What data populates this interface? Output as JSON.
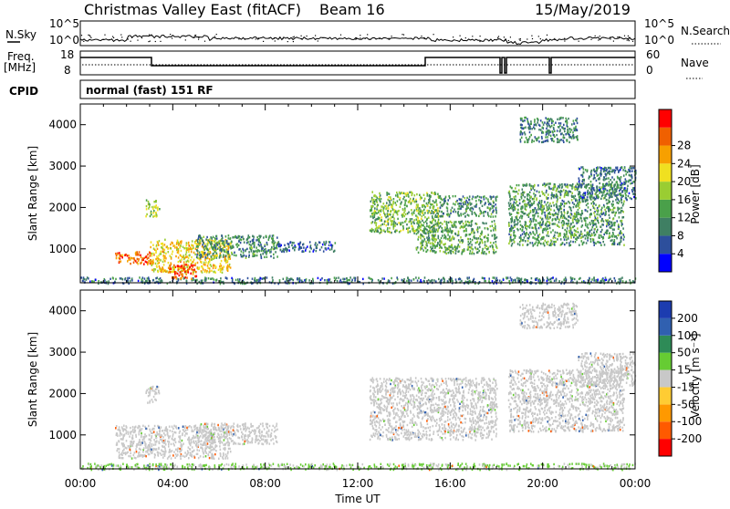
{
  "header": {
    "title": "Christmas Valley East (fitACF)",
    "beam": "Beam 16",
    "date": "15/May/2019"
  },
  "noise_panel": {
    "left_label": "N.Sky",
    "right_label": "N.Search",
    "left_ticks": [
      "10^5",
      "10^0"
    ],
    "right_ticks": [
      "10^5",
      "10^0"
    ]
  },
  "freq_panel": {
    "left_label_1": "Freq.",
    "left_label_2": "[MHz]",
    "right_label": "Nave",
    "left_ticks": [
      "18",
      "8"
    ],
    "right_ticks": [
      "60",
      "0"
    ]
  },
  "cpid": {
    "label": "CPID",
    "value": "normal (fast) 151 RF"
  },
  "colors": {
    "power_scale": [
      "#0000ff",
      "#2d4f9c",
      "#3f7f63",
      "#4aa04a",
      "#9acd32",
      "#f0e020",
      "#f7a000",
      "#f06000",
      "#ff0000"
    ],
    "velocity_scale": [
      "#ff0000",
      "#ff5a00",
      "#ff9900",
      "#ffcc33",
      "#c8c8c8",
      "#66cc33",
      "#2e8b57",
      "#3060b0",
      "#1c3cb0"
    ]
  },
  "chart_data": [
    {
      "type": "heatmap",
      "name": "power",
      "ylabel": "Slant Range [km]",
      "y_ticks": [
        "1000",
        "2000",
        "3000",
        "4000"
      ],
      "ylim": [
        180,
        4500
      ],
      "xlim": [
        0,
        24
      ],
      "colorbar": {
        "label": "Power [dB]",
        "ticks": [
          "4",
          "8",
          "12",
          "16",
          "20",
          "24",
          "28"
        ],
        "range": [
          0,
          32
        ]
      },
      "regions": [
        {
          "t": [
            0.0,
            24.0
          ],
          "r": [
            180,
            330
          ],
          "level": 8
        },
        {
          "t": [
            1.5,
            3.2
          ],
          "r": [
            650,
            950
          ],
          "level": 26
        },
        {
          "t": [
            2.8,
            3.4
          ],
          "r": [
            1800,
            2200
          ],
          "level": 16
        },
        {
          "t": [
            3.0,
            6.5
          ],
          "r": [
            450,
            1250
          ],
          "level": 20
        },
        {
          "t": [
            3.8,
            5.0
          ],
          "r": [
            300,
            650
          ],
          "level": 27
        },
        {
          "t": [
            5.0,
            8.5
          ],
          "r": [
            800,
            1350
          ],
          "level": 10
        },
        {
          "t": [
            8.5,
            11.0
          ],
          "r": [
            950,
            1200
          ],
          "level": 6
        },
        {
          "t": [
            12.5,
            15.5
          ],
          "r": [
            1400,
            2400
          ],
          "level": 14
        },
        {
          "t": [
            14.5,
            18.0
          ],
          "r": [
            900,
            1700
          ],
          "level": 12
        },
        {
          "t": [
            15.5,
            18.0
          ],
          "r": [
            1800,
            2300
          ],
          "level": 10
        },
        {
          "t": [
            18.5,
            23.5
          ],
          "r": [
            1100,
            2600
          ],
          "level": 11
        },
        {
          "t": [
            19.0,
            21.5
          ],
          "r": [
            3600,
            4200
          ],
          "level": 9
        },
        {
          "t": [
            21.5,
            24.0
          ],
          "r": [
            2200,
            3000
          ],
          "level": 8
        }
      ]
    },
    {
      "type": "heatmap",
      "name": "velocity",
      "ylabel": "Slant Range [km]",
      "xlabel": "Time UT",
      "x_ticks": [
        "00:00",
        "04:00",
        "08:00",
        "12:00",
        "16:00",
        "20:00",
        "00:00"
      ],
      "y_ticks": [
        "1000",
        "2000",
        "3000",
        "4000"
      ],
      "ylim": [
        180,
        4500
      ],
      "xlim": [
        0,
        24
      ],
      "colorbar": {
        "label": "Velocity [m s⁻¹]",
        "ticks": [
          "200",
          "100",
          "50",
          "15",
          "-15",
          "-50",
          "-100",
          "-200"
        ],
        "range": [
          -250,
          250
        ]
      },
      "regions": [
        {
          "t": [
            0.0,
            24.0
          ],
          "r": [
            180,
            330
          ],
          "v": 30
        },
        {
          "t": [
            1.5,
            6.5
          ],
          "r": [
            450,
            1250
          ],
          "v": 0
        },
        {
          "t": [
            2.8,
            3.4
          ],
          "r": [
            1800,
            2200
          ],
          "v": 0
        },
        {
          "t": [
            5.0,
            8.5
          ],
          "r": [
            800,
            1300
          ],
          "v": 0
        },
        {
          "t": [
            12.5,
            18.0
          ],
          "r": [
            900,
            2400
          ],
          "v": 0
        },
        {
          "t": [
            18.5,
            23.5
          ],
          "r": [
            1100,
            2600
          ],
          "v": 0
        },
        {
          "t": [
            19.0,
            21.5
          ],
          "r": [
            3600,
            4200
          ],
          "v": 0
        },
        {
          "t": [
            21.5,
            24.0
          ],
          "r": [
            2200,
            3000
          ],
          "v": 0
        }
      ]
    }
  ]
}
